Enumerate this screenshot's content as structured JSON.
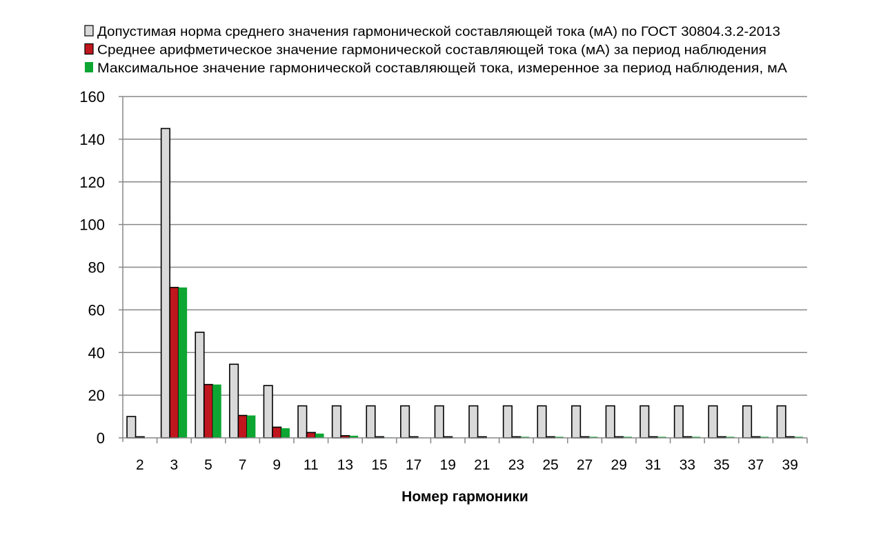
{
  "chart_data": {
    "type": "bar",
    "title": "",
    "xlabel": "Номер гармоники",
    "ylabel": "",
    "ylim": [
      0,
      160
    ],
    "yticks": [
      0,
      20,
      40,
      60,
      80,
      100,
      120,
      140,
      160
    ],
    "grid": true,
    "legend_position": "top",
    "categories": [
      "2",
      "3",
      "5",
      "7",
      "9",
      "11",
      "13",
      "15",
      "17",
      "19",
      "21",
      "23",
      "25",
      "27",
      "29",
      "31",
      "33",
      "35",
      "37",
      "39"
    ],
    "series": [
      {
        "name": "Допустимая норма среднего значения гармонической составляющей тока (мА) по ГОСТ 30804.3.2-2013",
        "color": "#d9d9d9",
        "values": [
          10,
          145,
          49.5,
          34.5,
          24.5,
          15,
          15,
          15,
          15,
          15,
          15,
          15,
          15,
          15,
          15,
          15,
          15,
          15,
          15,
          15
        ]
      },
      {
        "name": "Среднее арифметическое значение гармонической составляющей тока (мА) за период наблюдения",
        "color": "#c0161d",
        "values": [
          0.5,
          70.5,
          25,
          10.5,
          5,
          2.5,
          1,
          0.5,
          0.5,
          0.5,
          0.5,
          0.5,
          0.5,
          0.5,
          0.5,
          0.5,
          0.5,
          0.5,
          0.5,
          0.5
        ]
      },
      {
        "name": "Максимальное значение гармонической составляющей тока, измеренное за период наблюдения, мА",
        "color": "#0da632",
        "values": [
          0,
          70.5,
          25,
          10.5,
          4.5,
          2,
          1,
          0.2,
          0.1,
          0.1,
          0.1,
          0.5,
          0.5,
          0.5,
          0.5,
          0.5,
          0.5,
          0.5,
          0.5,
          0.5
        ]
      }
    ]
  }
}
